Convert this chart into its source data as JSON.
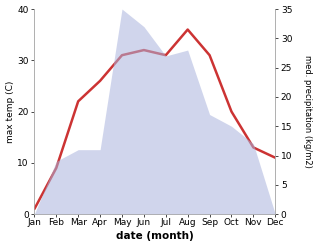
{
  "months": [
    "Jan",
    "Feb",
    "Mar",
    "Apr",
    "May",
    "Jun",
    "Jul",
    "Aug",
    "Sep",
    "Oct",
    "Nov",
    "Dec"
  ],
  "temp": [
    1,
    9,
    22,
    26,
    31,
    32,
    31,
    36,
    31,
    20,
    13,
    11
  ],
  "precip": [
    0,
    9,
    11,
    11,
    35,
    32,
    27,
    28,
    17,
    15,
    12,
    0
  ],
  "temp_ylim": [
    0,
    40
  ],
  "precip_ylim": [
    0,
    35
  ],
  "temp_yticks": [
    0,
    10,
    20,
    30,
    40
  ],
  "precip_yticks": [
    0,
    5,
    10,
    15,
    20,
    25,
    30,
    35
  ],
  "temp_color": "#cc3333",
  "precip_fill_color": "#aab4dd",
  "precip_fill_alpha": 0.55,
  "ylabel_left": "max temp (C)",
  "ylabel_right": "med. precipitation (kg/m2)",
  "xlabel": "date (month)",
  "bg_color": "#ffffff",
  "line_width": 1.8,
  "spine_color": "#aaaaaa"
}
